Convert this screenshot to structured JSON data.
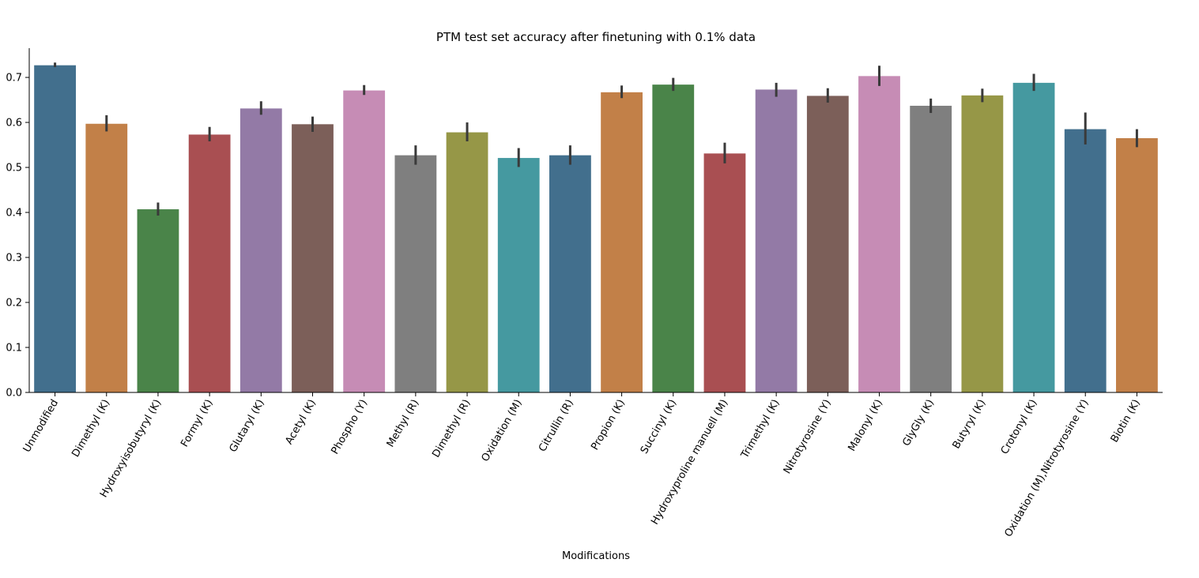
{
  "chart_data": {
    "type": "bar",
    "title": "PTM test set accuracy after finetuning with 0.1% data",
    "xlabel": "Modifications",
    "ylabel": "",
    "ylim": [
      0,
      0.765
    ],
    "yticks": [
      0.0,
      0.1,
      0.2,
      0.3,
      0.4,
      0.5,
      0.6,
      0.7
    ],
    "grid": false,
    "categories": [
      "Unmodified",
      "Dimethyl (K)",
      "Hydroxyisobutyryl (K)",
      "Formyl (K)",
      "Glutaryl (K)",
      "Acetyl (K)",
      "Phospho (Y)",
      "Methyl (R)",
      "Dimethyl (R)",
      "Oxidation (M)",
      "Citrullin (R)",
      "Propion  (K)",
      "Succinyl (K)",
      "Hydroxyproline manuell (M)",
      "Trimethyl (K)",
      "Nitrotyrosine (Y)",
      "Malonyl (K)",
      "GlyGly (K)",
      "Butyryl (K)",
      "Crotonyl (K)",
      "Oxidation (M),Nitrotyrosine (Y)",
      "Biotin (K)"
    ],
    "values": [
      0.727,
      0.597,
      0.407,
      0.573,
      0.631,
      0.596,
      0.671,
      0.527,
      0.578,
      0.521,
      0.527,
      0.667,
      0.684,
      0.531,
      0.673,
      0.659,
      0.703,
      0.637,
      0.66,
      0.688,
      0.585,
      0.565
    ],
    "error_low": [
      0.723,
      0.58,
      0.393,
      0.558,
      0.617,
      0.579,
      0.661,
      0.506,
      0.558,
      0.501,
      0.506,
      0.654,
      0.67,
      0.509,
      0.657,
      0.644,
      0.681,
      0.621,
      0.645,
      0.67,
      0.551,
      0.545
    ],
    "error_high": [
      0.733,
      0.616,
      0.422,
      0.59,
      0.647,
      0.613,
      0.683,
      0.549,
      0.6,
      0.543,
      0.549,
      0.682,
      0.699,
      0.555,
      0.688,
      0.676,
      0.726,
      0.653,
      0.675,
      0.708,
      0.622,
      0.585
    ],
    "colors": [
      "#426f8d",
      "#c28048",
      "#4a8449",
      "#a94f52",
      "#937aa6",
      "#7c5f59",
      "#c68cb5",
      "#7f7f7f",
      "#969747",
      "#4599a0"
    ],
    "error_color": "#3a3a3a"
  }
}
